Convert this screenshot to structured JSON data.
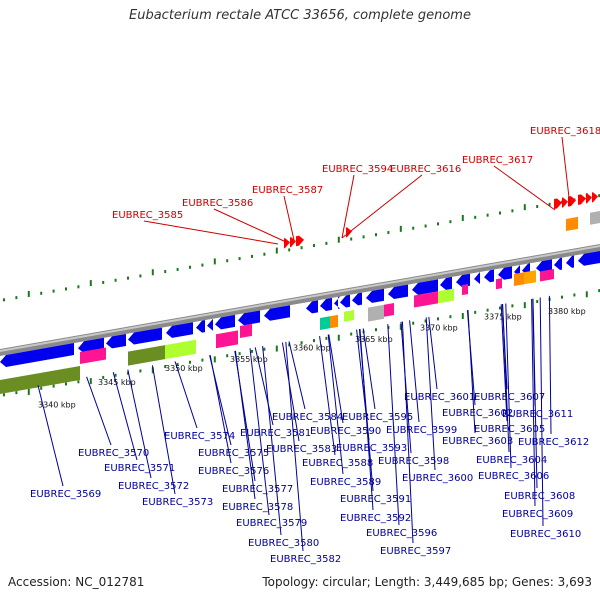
{
  "title": "Eubacterium rectale ATCC 33656, complete genome",
  "footer": {
    "accession": "Accession: NC_012781",
    "summary": "Topology: circular; Length: 3,449,685 bp; Genes: 3,693"
  },
  "colors": {
    "forward_cds": "#ff0000",
    "reverse_cds": "#0000ee",
    "backbone": "#888888",
    "tick": "#1a7a1a",
    "label_red": "#cc0000",
    "label_blue": "#000099"
  },
  "scale_labels": [
    "3340 kbp",
    "3345 kbp",
    "3350 kbp",
    "3355 kbp",
    "3360 kbp",
    "3365 kbp",
    "3370 kbp",
    "3375 kbp",
    "3380 kbp"
  ],
  "forward_labels": [
    "EUBREC_3585",
    "EUBREC_3586",
    "EUBREC_3587",
    "EUBREC_3594",
    "EUBREC_3616",
    "EUBREC_3617",
    "EUBREC_3618"
  ],
  "reverse_labels": [
    "EUBREC_3569",
    "EUBREC_3570",
    "EUBREC_3571",
    "EUBREC_3572",
    "EUBREC_3573",
    "EUBREC_3574",
    "EUBREC_3575",
    "EUBREC_3576",
    "EUBREC_3577",
    "EUBREC_3578",
    "EUBREC_3579",
    "EUBREC_3580",
    "EUBREC_3581",
    "EUBREC_3582",
    "EUBREC_3583",
    "EUBREC_3584",
    "EUBREC_3588",
    "EUBREC_3589",
    "EUBREC_3590",
    "EUBREC_3591",
    "EUBREC_3592",
    "EUBREC_3593",
    "EUBREC_3595",
    "EUBREC_3596",
    "EUBREC_3597",
    "EUBREC_3598",
    "EUBREC_3599",
    "EUBREC_3600",
    "EUBREC_3601",
    "EUBREC_3602",
    "EUBREC_3603",
    "EUBREC_3604",
    "EUBREC_3605",
    "EUBREC_3606",
    "EUBREC_3607",
    "EUBREC_3608",
    "EUBREC_3609",
    "EUBREC_3610",
    "EUBREC_3611",
    "EUBREC_3612"
  ]
}
